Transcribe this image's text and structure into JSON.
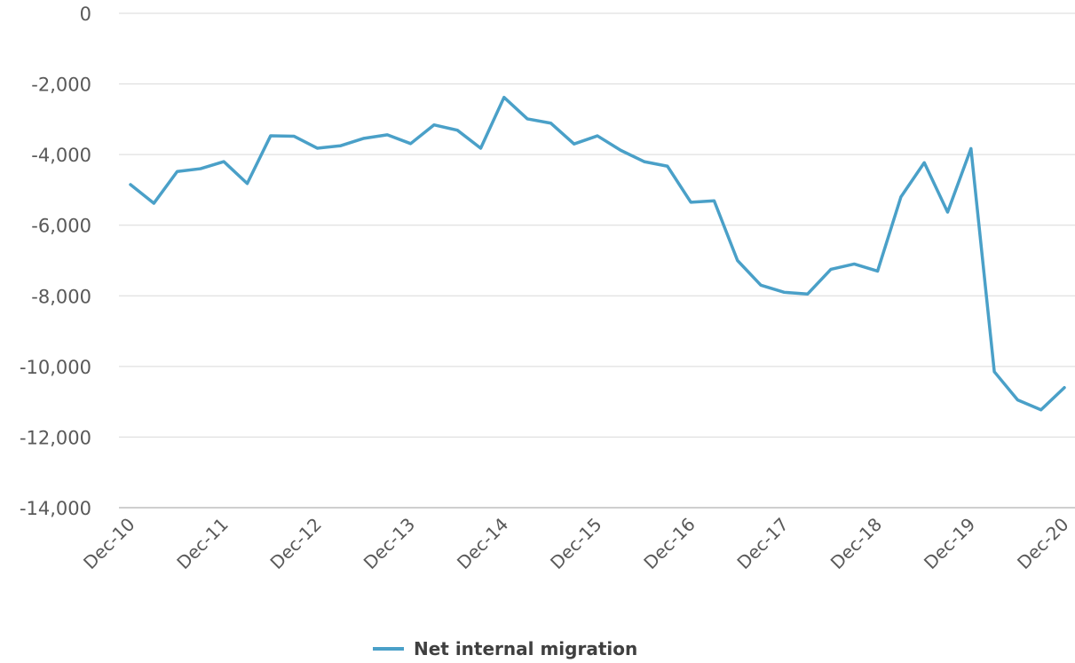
{
  "chart_data": {
    "type": "line",
    "title": "",
    "xlabel": "",
    "ylabel": "",
    "ylim": [
      -14000,
      0
    ],
    "yticks": [
      0,
      -2000,
      -4000,
      -6000,
      -8000,
      -10000,
      -12000,
      -14000
    ],
    "ytick_labels": [
      "0",
      "-2,000",
      "-4,000",
      "-6,000",
      "-8,000",
      "-10,000",
      "-12,000",
      "-14,000"
    ],
    "xtick_labels": [
      "Dec-10",
      "Dec-11",
      "Dec-12",
      "Dec-13",
      "Dec-14",
      "Dec-15",
      "Dec-16",
      "Dec-17",
      "Dec-18",
      "Dec-19",
      "Dec-20"
    ],
    "grid": true,
    "legend_position": "bottom",
    "series": [
      {
        "name": "Net internal migration",
        "color": "#4AA0C8",
        "values": [
          -4850,
          -5380,
          -4480,
          -4400,
          -4200,
          -4820,
          -3470,
          -3480,
          -3820,
          -3750,
          -3540,
          -3440,
          -3690,
          -3160,
          -3310,
          -3820,
          -2380,
          -2990,
          -3110,
          -3700,
          -3470,
          -3880,
          -4200,
          -4330,
          -5350,
          -5310,
          -7000,
          -7700,
          -7900,
          -7950,
          -7250,
          -7100,
          -7300,
          -5200,
          -4230,
          -5630,
          -3830,
          -10150,
          -10950,
          -11230,
          -10600
        ]
      }
    ]
  }
}
